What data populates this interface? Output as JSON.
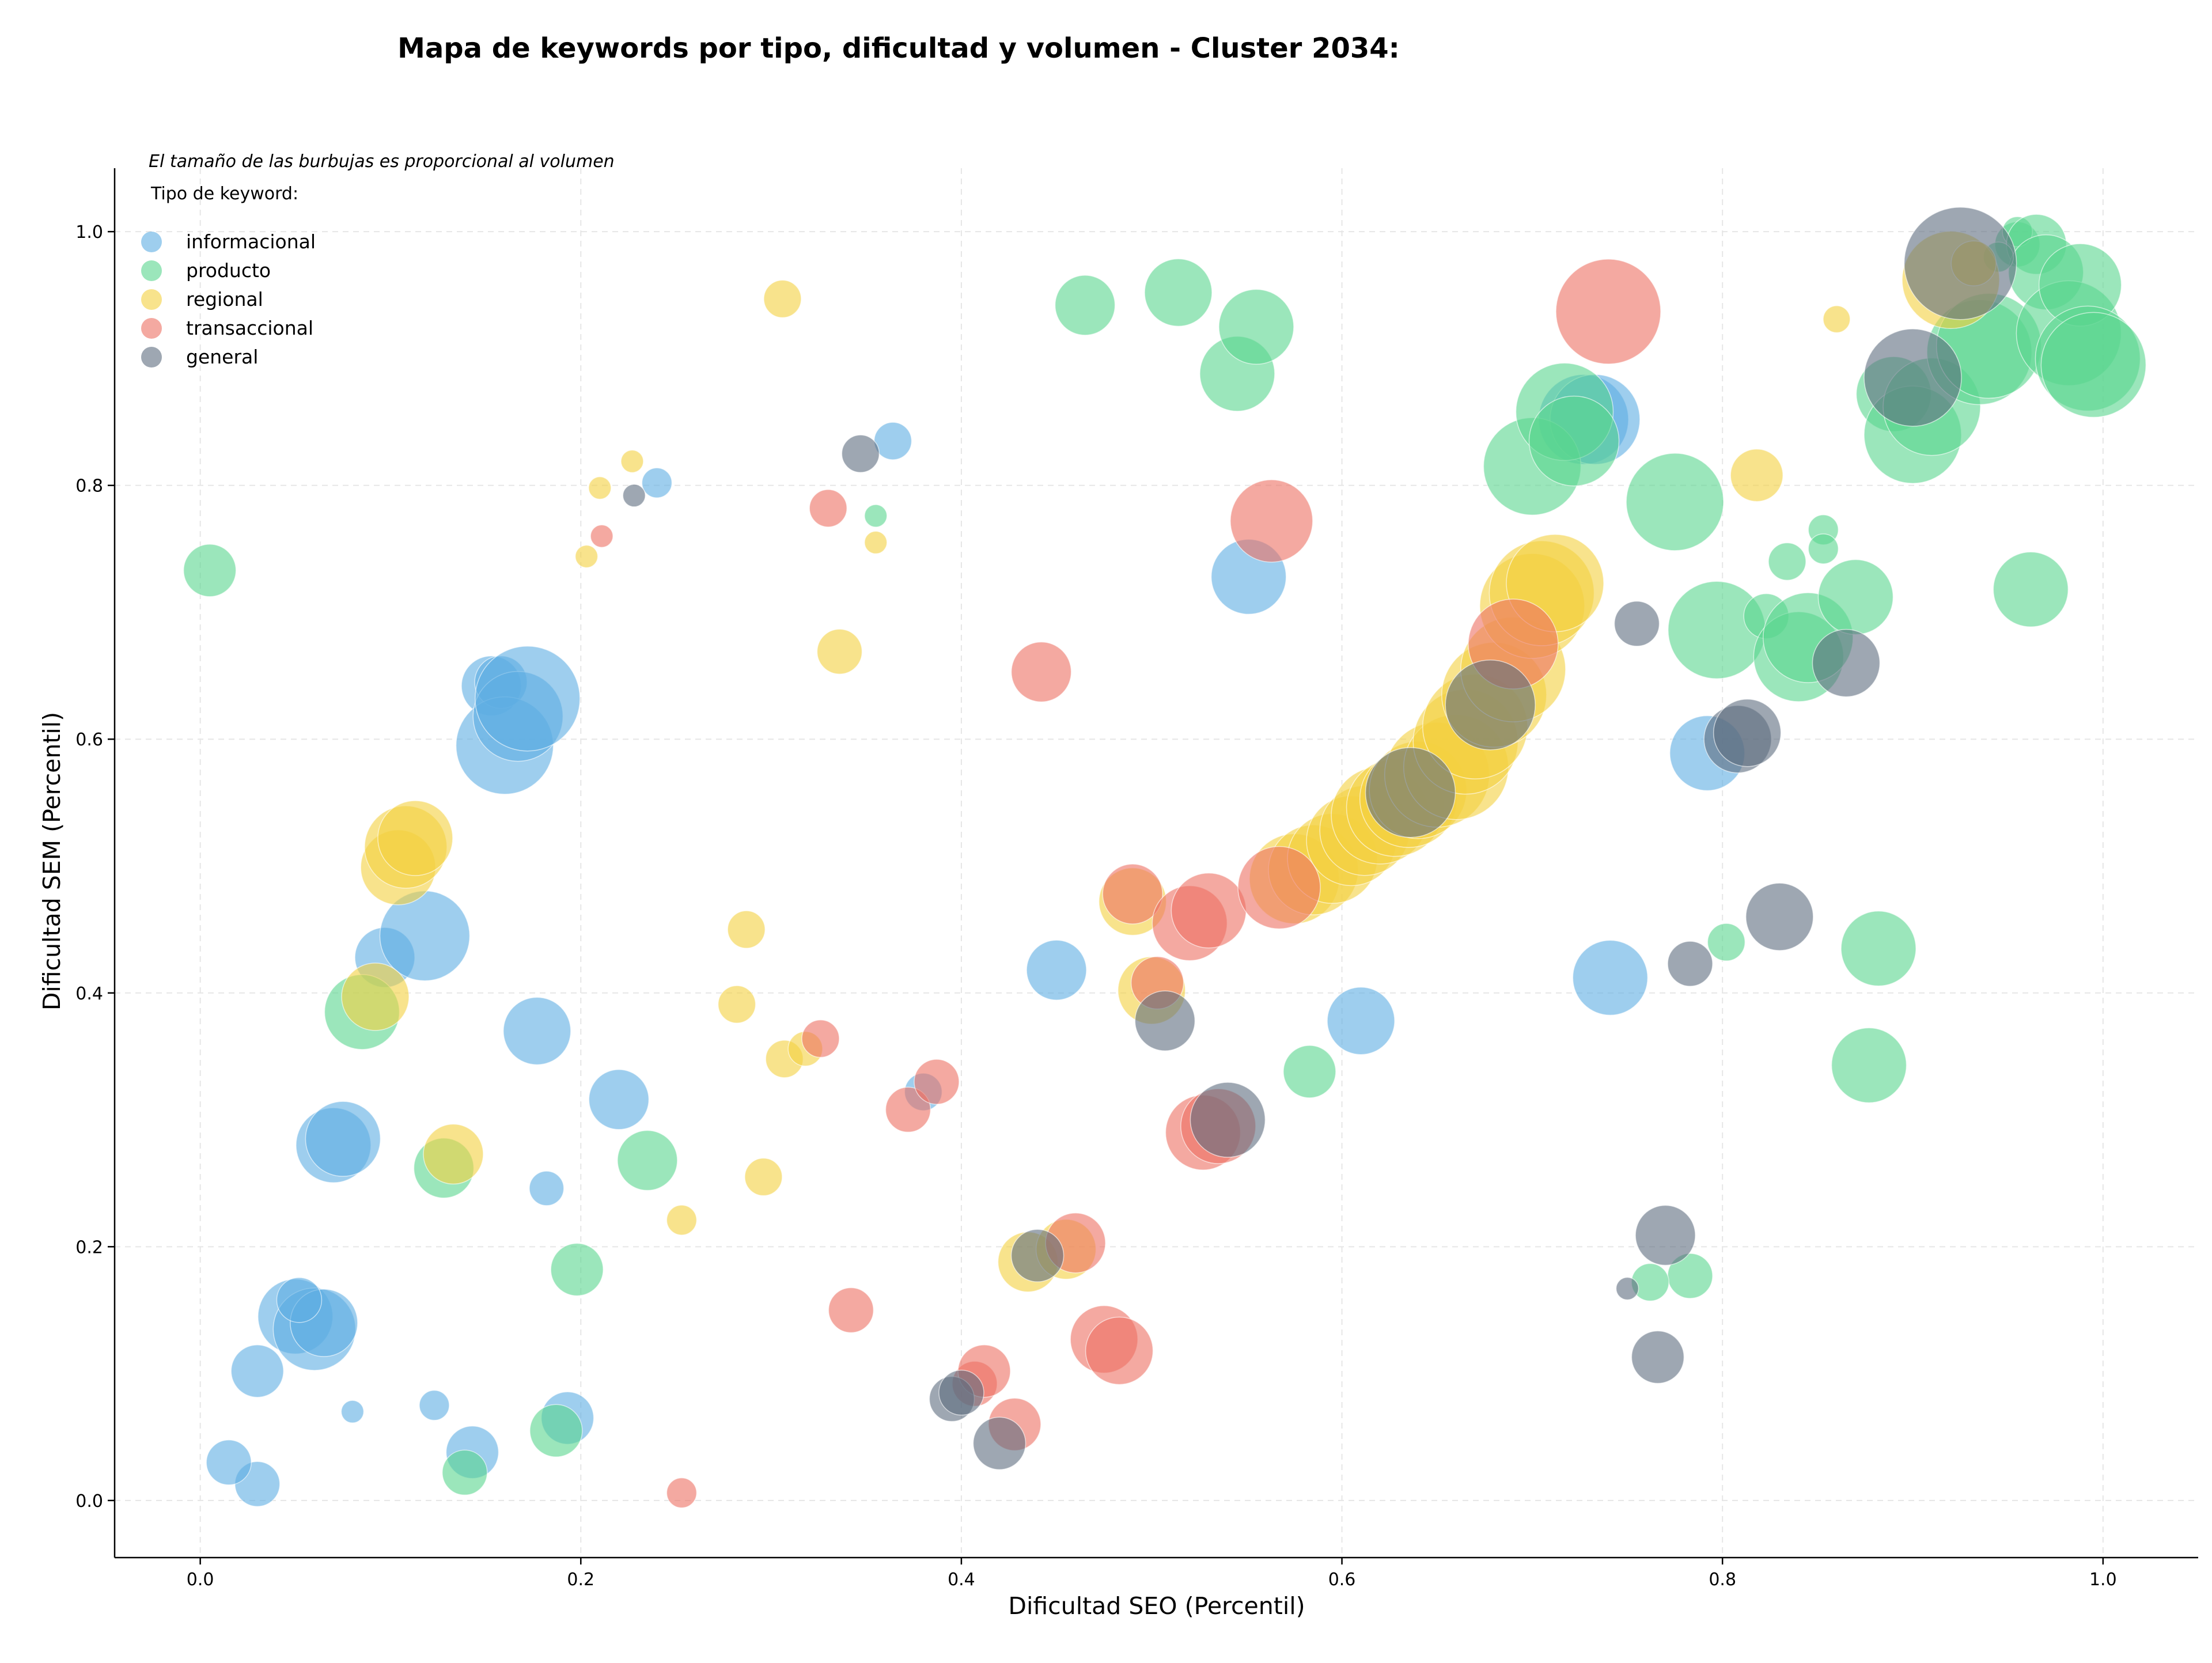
{
  "chart_data": {
    "type": "scatter",
    "title": "Mapa de keywords por tipo, dificultad y volumen - Cluster 2034:",
    "xlabel": "Dificultad SEO (Percentil)",
    "ylabel": "Dificultad SEM (Percentil)",
    "xlim": [
      -0.045,
      1.05
    ],
    "ylim": [
      -0.045,
      1.05
    ],
    "x_ticks": [
      0.0,
      0.2,
      0.4,
      0.6,
      0.8,
      1.0
    ],
    "y_ticks": [
      0.0,
      0.2,
      0.4,
      0.6,
      0.8,
      1.0
    ],
    "grid": true,
    "legend": {
      "position": "top-left",
      "note": "El tamaño de las burbujas es proporcional al volumen",
      "title": "Tipo de keyword:"
    },
    "series": [
      {
        "name": "informacional",
        "color": "#5DADE2",
        "points": [
          [
            0.03,
            0.013,
            3
          ],
          [
            0.015,
            0.03,
            3
          ],
          [
            0.03,
            0.102,
            3.5
          ],
          [
            0.05,
            0.145,
            5
          ],
          [
            0.06,
            0.135,
            5.5
          ],
          [
            0.065,
            0.14,
            4.5
          ],
          [
            0.052,
            0.158,
            3
          ],
          [
            0.08,
            0.07,
            1.5
          ],
          [
            0.123,
            0.075,
            2
          ],
          [
            0.143,
            0.038,
            3.5
          ],
          [
            0.193,
            0.065,
            3.5
          ],
          [
            0.182,
            0.246,
            2.3
          ],
          [
            0.22,
            0.316,
            4
          ],
          [
            0.07,
            0.28,
            5
          ],
          [
            0.075,
            0.285,
            5
          ],
          [
            0.097,
            0.428,
            4
          ],
          [
            0.118,
            0.445,
            6
          ],
          [
            0.177,
            0.37,
            4.5
          ],
          [
            0.153,
            0.642,
            4
          ],
          [
            0.158,
            0.645,
            3.5
          ],
          [
            0.16,
            0.595,
            6.5
          ],
          [
            0.167,
            0.618,
            6
          ],
          [
            0.172,
            0.632,
            7
          ],
          [
            0.24,
            0.802,
            2
          ],
          [
            0.364,
            0.835,
            2.5
          ],
          [
            0.38,
            0.322,
            2.5
          ],
          [
            0.45,
            0.418,
            4
          ],
          [
            0.551,
            0.728,
            5
          ],
          [
            0.61,
            0.378,
            4.5
          ],
          [
            0.727,
            0.852,
            6
          ],
          [
            0.733,
            0.852,
            6
          ],
          [
            0.741,
            0.412,
            5
          ],
          [
            0.792,
            0.589,
            5
          ]
        ]
      },
      {
        "name": "producto",
        "color": "#58D68D",
        "points": [
          [
            0.005,
            0.733,
            3.5
          ],
          [
            0.085,
            0.385,
            5
          ],
          [
            0.128,
            0.262,
            4
          ],
          [
            0.139,
            0.022,
            3
          ],
          [
            0.187,
            0.055,
            3.5
          ],
          [
            0.198,
            0.182,
            3.5
          ],
          [
            0.235,
            0.268,
            4
          ],
          [
            0.355,
            0.776,
            1.5
          ],
          [
            0.465,
            0.942,
            4
          ],
          [
            0.514,
            0.952,
            4.5
          ],
          [
            0.545,
            0.888,
            5
          ],
          [
            0.555,
            0.925,
            5
          ],
          [
            0.583,
            0.338,
            3.5
          ],
          [
            0.7,
            0.815,
            6.5
          ],
          [
            0.717,
            0.858,
            6.5
          ],
          [
            0.722,
            0.835,
            6
          ],
          [
            0.775,
            0.787,
            6.5
          ],
          [
            0.797,
            0.686,
            6.5
          ],
          [
            0.802,
            0.44,
            2.5
          ],
          [
            0.783,
            0.177,
            3
          ],
          [
            0.762,
            0.172,
            2.5
          ],
          [
            0.823,
            0.697,
            3
          ],
          [
            0.834,
            0.74,
            2.5
          ],
          [
            0.84,
            0.665,
            6
          ],
          [
            0.845,
            0.68,
            6
          ],
          [
            0.853,
            0.765,
            2
          ],
          [
            0.853,
            0.75,
            2
          ],
          [
            0.87,
            0.712,
            5
          ],
          [
            0.877,
            0.343,
            5
          ],
          [
            0.882,
            0.435,
            5
          ],
          [
            0.89,
            0.872,
            5
          ],
          [
            0.9,
            0.84,
            6.5
          ],
          [
            0.91,
            0.862,
            6.5
          ],
          [
            0.935,
            0.905,
            7
          ],
          [
            0.94,
            0.91,
            7
          ],
          [
            0.955,
            0.99,
            3
          ],
          [
            0.955,
            1.0,
            2
          ],
          [
            0.965,
            0.99,
            4
          ],
          [
            0.97,
            0.968,
            5
          ],
          [
            0.962,
            0.718,
            5
          ],
          [
            0.982,
            0.92,
            7
          ],
          [
            0.988,
            0.958,
            5.5
          ],
          [
            0.992,
            0.9,
            7
          ],
          [
            0.995,
            0.895,
            7
          ],
          [
            0.945,
            0.98,
            2
          ]
        ]
      },
      {
        "name": "regional",
        "color": "#F4D03F",
        "points": [
          [
            0.092,
            0.397,
            4.5
          ],
          [
            0.104,
            0.499,
            5
          ],
          [
            0.108,
            0.515,
            5.5
          ],
          [
            0.113,
            0.522,
            5
          ],
          [
            0.133,
            0.273,
            4
          ],
          [
            0.203,
            0.744,
            1.5
          ],
          [
            0.21,
            0.798,
            1.5
          ],
          [
            0.227,
            0.819,
            1.5
          ],
          [
            0.253,
            0.221,
            2
          ],
          [
            0.282,
            0.391,
            2.5
          ],
          [
            0.287,
            0.45,
            2.5
          ],
          [
            0.296,
            0.255,
            2.5
          ],
          [
            0.306,
            0.947,
            2.5
          ],
          [
            0.307,
            0.348,
            2.5
          ],
          [
            0.318,
            0.356,
            2.3
          ],
          [
            0.336,
            0.669,
            3
          ],
          [
            0.355,
            0.755,
            1.5
          ],
          [
            0.435,
            0.188,
            4
          ],
          [
            0.455,
            0.198,
            4
          ],
          [
            0.49,
            0.472,
            4.5
          ],
          [
            0.5,
            0.402,
            4.5
          ],
          [
            0.575,
            0.49,
            6
          ],
          [
            0.585,
            0.497,
            6
          ],
          [
            0.595,
            0.506,
            6
          ],
          [
            0.605,
            0.52,
            6
          ],
          [
            0.612,
            0.528,
            6
          ],
          [
            0.62,
            0.54,
            6.5
          ],
          [
            0.628,
            0.546,
            6.5
          ],
          [
            0.635,
            0.553,
            6.5
          ],
          [
            0.64,
            0.56,
            6.5
          ],
          [
            0.65,
            0.572,
            7
          ],
          [
            0.66,
            0.578,
            7
          ],
          [
            0.665,
            0.598,
            7
          ],
          [
            0.67,
            0.61,
            7
          ],
          [
            0.68,
            0.635,
            7
          ],
          [
            0.69,
            0.655,
            7
          ],
          [
            0.7,
            0.705,
            7
          ],
          [
            0.705,
            0.715,
            7
          ],
          [
            0.712,
            0.723,
            6.5
          ],
          [
            0.818,
            0.808,
            3.5
          ],
          [
            0.86,
            0.931,
            1.8
          ],
          [
            0.92,
            0.962,
            6.5
          ],
          [
            0.932,
            0.975,
            3
          ]
        ]
      },
      {
        "name": "transaccional",
        "color": "#EC7063",
        "points": [
          [
            0.211,
            0.76,
            1.5
          ],
          [
            0.253,
            0.006,
            2
          ],
          [
            0.33,
            0.782,
            2.5
          ],
          [
            0.326,
            0.364,
            2.5
          ],
          [
            0.342,
            0.15,
            3
          ],
          [
            0.372,
            0.308,
            3
          ],
          [
            0.387,
            0.33,
            3
          ],
          [
            0.407,
            0.092,
            3
          ],
          [
            0.412,
            0.102,
            3.5
          ],
          [
            0.428,
            0.06,
            3.5
          ],
          [
            0.442,
            0.653,
            4
          ],
          [
            0.46,
            0.203,
            4
          ],
          [
            0.475,
            0.127,
            4.5
          ],
          [
            0.483,
            0.118,
            4.5
          ],
          [
            0.49,
            0.478,
            4
          ],
          [
            0.503,
            0.408,
            3.5
          ],
          [
            0.52,
            0.455,
            5
          ],
          [
            0.527,
            0.29,
            5
          ],
          [
            0.53,
            0.465,
            5
          ],
          [
            0.535,
            0.295,
            5
          ],
          [
            0.563,
            0.772,
            5.5
          ],
          [
            0.567,
            0.483,
            5.5
          ],
          [
            0.69,
            0.675,
            6
          ],
          [
            0.74,
            0.937,
            7
          ]
        ]
      },
      {
        "name": "general",
        "color": "#5D6D7E",
        "points": [
          [
            0.228,
            0.792,
            1.5
          ],
          [
            0.347,
            0.825,
            2.5
          ],
          [
            0.395,
            0.08,
            3
          ],
          [
            0.4,
            0.085,
            3
          ],
          [
            0.42,
            0.045,
            3.5
          ],
          [
            0.44,
            0.193,
            3.5
          ],
          [
            0.507,
            0.378,
            4
          ],
          [
            0.54,
            0.3,
            5
          ],
          [
            0.636,
            0.558,
            6
          ],
          [
            0.678,
            0.627,
            6
          ],
          [
            0.75,
            0.167,
            1.5
          ],
          [
            0.755,
            0.691,
            3
          ],
          [
            0.766,
            0.113,
            3.5
          ],
          [
            0.77,
            0.209,
            4
          ],
          [
            0.783,
            0.423,
            3
          ],
          [
            0.808,
            0.6,
            4.5
          ],
          [
            0.813,
            0.605,
            4.5
          ],
          [
            0.83,
            0.46,
            4.5
          ],
          [
            0.865,
            0.66,
            4.5
          ],
          [
            0.9,
            0.885,
            6.5
          ],
          [
            0.925,
            0.975,
            7.5
          ]
        ]
      }
    ]
  }
}
